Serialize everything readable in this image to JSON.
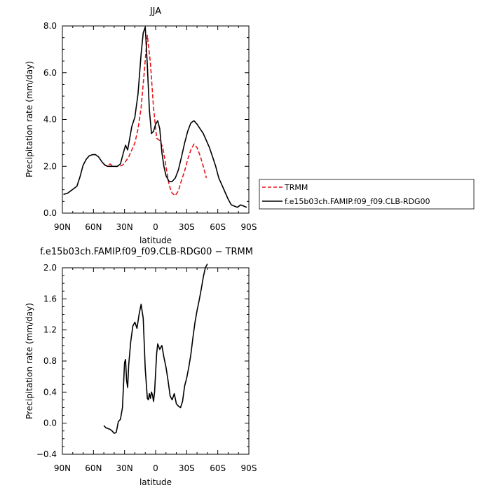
{
  "chart_data": [
    {
      "type": "line",
      "title": "JJA",
      "xlabel": "latitude",
      "ylabel": "Precipitation rate (mm/day)",
      "x_tick_labels": [
        "90N",
        "60N",
        "30N",
        "0",
        "30S",
        "60S",
        "90S"
      ],
      "x_ticks": [
        90,
        60,
        30,
        0,
        -30,
        -60,
        -90
      ],
      "xlim": [
        90,
        -90
      ],
      "y_tick_labels": [
        "0.0",
        "2.0",
        "4.0",
        "6.0",
        "8.0"
      ],
      "y_ticks": [
        0,
        2,
        4,
        6,
        8
      ],
      "ylim": [
        0,
        8
      ],
      "grid": false,
      "legend_position": "outside-right",
      "series": [
        {
          "name": "TRMM",
          "color": "#e8141b",
          "style": "dashed",
          "x": [
            50,
            47,
            44,
            41,
            38,
            35,
            32,
            29,
            26,
            23,
            20,
            17,
            14,
            11,
            8,
            5,
            2,
            -1,
            -4,
            -7,
            -10,
            -13,
            -16,
            -19,
            -22,
            -25,
            -28,
            -31,
            -34,
            -37,
            -40,
            -43,
            -46,
            -49
          ],
          "y": [
            2.1,
            2.0,
            2.1,
            2.0,
            2.0,
            2.0,
            2.05,
            2.2,
            2.4,
            2.7,
            3.0,
            3.6,
            4.5,
            6.0,
            7.6,
            6.4,
            4.5,
            3.2,
            3.1,
            2.8,
            2.0,
            1.2,
            0.85,
            0.75,
            0.95,
            1.4,
            1.8,
            2.3,
            2.7,
            2.95,
            2.8,
            2.45,
            2.0,
            1.5
          ]
        },
        {
          "name": "f.e15b03ch.FAMIP.f09_f09.CLB-RDG00",
          "color": "#000000",
          "style": "solid",
          "x": [
            89,
            85,
            82,
            79,
            76,
            73,
            70,
            67,
            64,
            61,
            58,
            55,
            52,
            49,
            46,
            43,
            40,
            37,
            34,
            31,
            29,
            27,
            25,
            23,
            20,
            17,
            14,
            12,
            10,
            8,
            6,
            4,
            2,
            0,
            -2,
            -4,
            -6,
            -8,
            -10,
            -13,
            -16,
            -19,
            -22,
            -25,
            -28,
            -31,
            -34,
            -37,
            -40,
            -43,
            -46,
            -49,
            -52,
            -55,
            -58,
            -61,
            -64,
            -67,
            -70,
            -73,
            -76,
            -79,
            -82,
            -85,
            -88
          ],
          "y": [
            0.8,
            0.85,
            0.95,
            1.05,
            1.15,
            1.55,
            2.05,
            2.3,
            2.45,
            2.5,
            2.5,
            2.4,
            2.2,
            2.05,
            2.0,
            2.0,
            2.0,
            2.0,
            2.1,
            2.6,
            2.9,
            2.7,
            3.2,
            3.7,
            4.1,
            5.1,
            6.8,
            7.7,
            7.95,
            6.3,
            4.4,
            3.4,
            3.5,
            3.8,
            3.95,
            3.6,
            2.6,
            2.0,
            1.6,
            1.35,
            1.35,
            1.5,
            1.85,
            2.4,
            3.0,
            3.5,
            3.85,
            3.95,
            3.8,
            3.6,
            3.4,
            3.1,
            2.8,
            2.4,
            2.0,
            1.5,
            1.2,
            0.9,
            0.6,
            0.35,
            0.3,
            0.25,
            0.35,
            0.3,
            0.25
          ]
        }
      ]
    },
    {
      "type": "line",
      "title": "f.e15b03ch.FAMIP.f09_f09.CLB-RDG00  −  TRMM",
      "xlabel": "latitude",
      "ylabel": "Precipitation rate (mm/day)",
      "x_tick_labels": [
        "90N",
        "60N",
        "30N",
        "0",
        "30S",
        "60S",
        "90S"
      ],
      "x_ticks": [
        90,
        60,
        30,
        0,
        -30,
        -60,
        -90
      ],
      "xlim": [
        90,
        -90
      ],
      "y_tick_labels": [
        "−0.4",
        "0.0",
        "0.4",
        "0.8",
        "1.2",
        "1.6",
        "2.0"
      ],
      "y_ticks": [
        -0.4,
        0,
        0.4,
        0.8,
        1.2,
        1.6,
        2.0
      ],
      "ylim": [
        -0.4,
        2.0
      ],
      "grid": false,
      "series": [
        {
          "name": "",
          "color": "#000000",
          "style": "solid",
          "x": [
            50,
            48,
            46,
            44,
            42,
            40,
            38,
            36,
            34,
            32,
            30,
            29,
            28,
            27,
            26,
            24,
            22,
            20,
            18,
            16,
            14,
            12,
            10,
            8,
            7,
            6,
            5,
            4,
            3,
            2,
            1,
            0,
            -1,
            -2,
            -4,
            -6,
            -8,
            -10,
            -12,
            -14,
            -16,
            -18,
            -20,
            -22,
            -24,
            -26,
            -28,
            -30,
            -32,
            -34,
            -36,
            -38,
            -40,
            -42,
            -44,
            -46,
            -48,
            -50
          ],
          "y": [
            -0.03,
            -0.06,
            -0.07,
            -0.08,
            -0.1,
            -0.13,
            -0.12,
            0.02,
            0.05,
            0.2,
            0.78,
            0.82,
            0.55,
            0.46,
            0.75,
            1.05,
            1.25,
            1.3,
            1.22,
            1.4,
            1.53,
            1.35,
            0.7,
            0.32,
            0.3,
            0.38,
            0.32,
            0.4,
            0.36,
            0.28,
            0.4,
            0.65,
            0.9,
            1.02,
            0.95,
            1.0,
            0.85,
            0.72,
            0.55,
            0.35,
            0.3,
            0.38,
            0.25,
            0.22,
            0.2,
            0.28,
            0.48,
            0.58,
            0.72,
            0.88,
            1.1,
            1.3,
            1.45,
            1.58,
            1.72,
            1.88,
            2.0,
            2.05
          ]
        }
      ]
    }
  ]
}
